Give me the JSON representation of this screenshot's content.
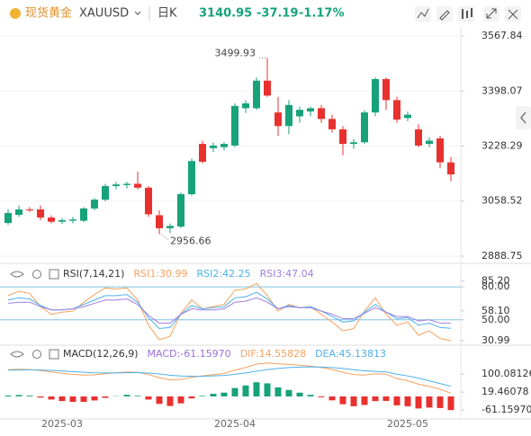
{
  "header": {
    "name": "现货黄金",
    "symbol": "XAUUSD",
    "period": "日K",
    "price": "3140.95",
    "change": "-37.19",
    "change_pct": "-1.17%"
  },
  "chart_data": [
    {
      "type": "candlestick",
      "up_color": "#17a27a",
      "down_color": "#e8312f",
      "grid": true,
      "categories": [
        null,
        null,
        null,
        null,
        null,
        "2025-03",
        null,
        null,
        null,
        null,
        null,
        null,
        null,
        null,
        null,
        null,
        null,
        null,
        null,
        null,
        null,
        "2025-04",
        null,
        null,
        null,
        null,
        null,
        null,
        null,
        null,
        null,
        null,
        null,
        null,
        null,
        null,
        null,
        "2025-05",
        null,
        null,
        null,
        null
      ],
      "open": [
        2991,
        3016,
        3033,
        3033,
        3008,
        2995,
        2998,
        2998,
        3036,
        3063,
        3105,
        3108,
        3112,
        3100,
        3015,
        2975,
        2980,
        3080,
        3235,
        3222,
        3225,
        3230,
        3345,
        3345,
        3430,
        3332,
        3290,
        3320,
        3335,
        3345,
        3312,
        3280,
        3235,
        3240,
        3332,
        3435,
        3370,
        3315,
        3280,
        3235,
        3252,
        3178
      ],
      "high": [
        3033,
        3045,
        3040,
        3045,
        3015,
        3005,
        3010,
        3040,
        3068,
        3112,
        3118,
        3118,
        3150,
        3105,
        3030,
        2990,
        3085,
        3190,
        3245,
        3240,
        3240,
        3360,
        3370,
        3440,
        3499.93,
        3380,
        3370,
        3350,
        3350,
        3355,
        3325,
        3290,
        3250,
        3340,
        3440,
        3440,
        3380,
        3335,
        3295,
        3255,
        3260,
        3195
      ],
      "low": [
        2985,
        3010,
        3025,
        3000,
        2990,
        2988,
        2990,
        2994,
        3030,
        3058,
        3095,
        3098,
        3095,
        3010,
        2956.66,
        2960,
        2975,
        3075,
        3175,
        3210,
        3215,
        3225,
        3330,
        3340,
        3380,
        3260,
        3265,
        3300,
        3320,
        3300,
        3270,
        3200,
        3220,
        3235,
        3320,
        3340,
        3300,
        3305,
        3225,
        3225,
        3160,
        3120
      ],
      "close": [
        3022,
        3033,
        3030,
        3008,
        2995,
        3000,
        3002,
        3036,
        3063,
        3105,
        3110,
        3112,
        3100,
        3018,
        2975,
        2982,
        3080,
        3182,
        3180,
        3230,
        3235,
        3352,
        3360,
        3430,
        3384,
        3290,
        3355,
        3340,
        3345,
        3312,
        3280,
        3235,
        3240,
        3332,
        3435,
        3370,
        3310,
        3325,
        3230,
        3245,
        3178.14,
        3140.95
      ],
      "ylim": [
        2869.3,
        3595.6
      ],
      "yticks": [
        3567.84,
        3398.07,
        3228.29,
        3058.52,
        2888.75
      ]
    },
    {
      "type": "line",
      "title": "RSI(7,14,21)",
      "grid": false,
      "series": [
        {
          "name": "RSI1:30.99",
          "color": "#f5a25d",
          "values": [
            72,
            76,
            74,
            62,
            55,
            57,
            58,
            66,
            73,
            79,
            78,
            79,
            68,
            45,
            32,
            35,
            56,
            68,
            60,
            62,
            64,
            77,
            78,
            83,
            72,
            58,
            64,
            61,
            62,
            55,
            48,
            40,
            42,
            58,
            70,
            55,
            45,
            48,
            36,
            40,
            33,
            30.99
          ]
        },
        {
          "name": "RSI2:42.25",
          "color": "#4fb0e8",
          "values": [
            68,
            70,
            69,
            63,
            59,
            59,
            60,
            64,
            68,
            72,
            72,
            73,
            66,
            52,
            42,
            43,
            55,
            63,
            60,
            61,
            62,
            70,
            71,
            75,
            69,
            60,
            63,
            61,
            62,
            58,
            53,
            48,
            49,
            57,
            64,
            57,
            51,
            52,
            45,
            47,
            43,
            42.25
          ]
        },
        {
          "name": "RSI3:47.04",
          "color": "#a07de0",
          "values": [
            65,
            66,
            66,
            62,
            59,
            59,
            60,
            62,
            65,
            68,
            68,
            69,
            64,
            54,
            47,
            47,
            55,
            60,
            59,
            59,
            60,
            66,
            67,
            70,
            66,
            60,
            62,
            61,
            61,
            58,
            55,
            51,
            51,
            56,
            61,
            57,
            53,
            53,
            49,
            50,
            47,
            47.04
          ]
        }
      ],
      "hlines": [
        80,
        50
      ],
      "hline_color": "#7fc4e8",
      "ylim": [
        27.7,
        98.9
      ],
      "yticks": [
        {
          "value": 85.2,
          "label": "85.20"
        },
        {
          "value": 80,
          "label": "80.00"
        },
        {
          "value": 58.1,
          "label": "58.10"
        },
        {
          "value": 50,
          "label": "50.00"
        },
        30.99
      ]
    },
    {
      "type": "macd",
      "title": "MACD(12,26,9)",
      "grid": false,
      "up_color": "#17a27a",
      "down_color": "#e8312f",
      "series": [
        {
          "name": "MACD:-61.15970",
          "color": "#9b6fd8",
          "values": [
            4,
            6.4,
            3.6,
            -5.2,
            -13.8,
            -20.6,
            -24.4,
            -24.4,
            -18,
            -6.4,
            1.2,
            7.4,
            2.8,
            -13.8,
            -33.4,
            -42.8,
            -31,
            -8.8,
            2.6,
            11.6,
            17.2,
            37.8,
            49.4,
            63.6,
            58.8,
            40.6,
            29.2,
            17,
            7.2,
            -3.8,
            -17.4,
            -34.8,
            -43.8,
            -38.2,
            -21,
            -20,
            -40,
            -44,
            -54,
            -50,
            -52,
            -61.1597
          ]
        },
        {
          "name": "DIF:14.55828",
          "color": "#f5a25d",
          "values": [
            120,
            122,
            121,
            116,
            110,
            104,
            99,
            96,
            97,
            102,
            106,
            110,
            108,
            98,
            84,
            74,
            76,
            86,
            92,
            98,
            103,
            118,
            130,
            145,
            150,
            146,
            144,
            140,
            136,
            130,
            121,
            108,
            98,
            96,
            102,
            100,
            80,
            70,
            55,
            45,
            32,
            14.55828
          ]
        },
        {
          "name": "DEA:45.13813",
          "color": "#4fb0e8",
          "values": [
            118,
            118.8,
            119.2,
            118.6,
            116.9,
            114.3,
            111.2,
            108.2,
            106,
            105.2,
            105.4,
            106.3,
            106.6,
            104.9,
            100.7,
            95.4,
            91.5,
            90.4,
            90.7,
            92.2,
            94.4,
            99.1,
            105.3,
            113.2,
            120.6,
            125.7,
            129.4,
            131.5,
            132.4,
            131.9,
            129.7,
            125.4,
            119.9,
            115.1,
            112.5,
            110,
            100,
            92,
            82,
            70,
            58,
            45.13813
          ]
        }
      ],
      "ylim": [
        -100.8,
        213.7
      ],
      "yticks": [
        100.08126,
        19.46078,
        {
          "value": -61.1597,
          "label": "-61.15970"
        }
      ]
    }
  ]
}
